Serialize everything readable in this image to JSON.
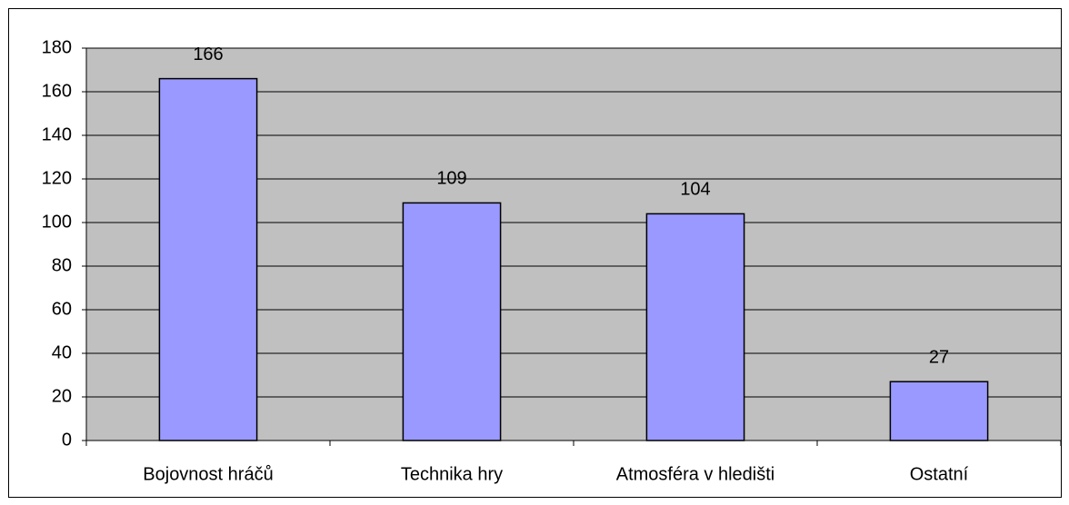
{
  "chart_data": {
    "type": "bar",
    "categories": [
      "Bojovnost hráčů",
      "Technika hry",
      "Atmosféra v hledišti",
      "Ostatní"
    ],
    "values": [
      166,
      109,
      104,
      27
    ],
    "color": "#9999ff",
    "ylim": [
      0,
      180
    ],
    "yticks": [
      0,
      20,
      40,
      60,
      80,
      100,
      120,
      140,
      160,
      180
    ],
    "grid": true
  }
}
